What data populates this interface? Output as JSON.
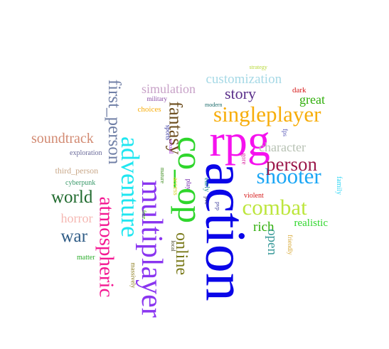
{
  "words": [
    {
      "id": "action",
      "text": "action",
      "color": "#0a05e8"
    },
    {
      "id": "rpg",
      "text": "rpg",
      "color": "#f512ee"
    },
    {
      "id": "coop",
      "text": "co_op",
      "color": "#2fd62c"
    },
    {
      "id": "multiplayer",
      "text": "multiplayer",
      "color": "#8a35f0"
    },
    {
      "id": "adventure",
      "text": "adventure",
      "color": "#1fe6f0"
    },
    {
      "id": "singleplayer",
      "text": "singleplayer",
      "color": "#f7ad0a"
    },
    {
      "id": "shooter",
      "text": "shooter",
      "color": "#1aa6f5"
    },
    {
      "id": "atmospheric",
      "text": "atmospheric",
      "color": "#f41892"
    },
    {
      "id": "combat",
      "text": "combat",
      "color": "#bde63d"
    },
    {
      "id": "fantasy",
      "text": "fantasy",
      "color": "#6b4c1c"
    },
    {
      "id": "first_person",
      "text": "first_person",
      "color": "#707fa6"
    },
    {
      "id": "person",
      "text": "person",
      "color": "#9c1a4c"
    },
    {
      "id": "world",
      "text": "world",
      "color": "#216b2f"
    },
    {
      "id": "war",
      "text": "war",
      "color": "#2f5c86"
    },
    {
      "id": "online",
      "text": "online",
      "color": "#7a7a1a"
    },
    {
      "id": "story",
      "text": "story",
      "color": "#5a2f8a"
    },
    {
      "id": "soundtrack",
      "text": "soundtrack",
      "color": "#d28a72"
    },
    {
      "id": "customization",
      "text": "customization",
      "color": "#a6d9e6"
    },
    {
      "id": "character",
      "text": "character",
      "color": "#b8c2b4"
    },
    {
      "id": "simulation",
      "text": "simulation",
      "color": "#c8a2c8"
    },
    {
      "id": "rich",
      "text": "rich",
      "color": "#2fae0a"
    },
    {
      "id": "horror",
      "text": "horror",
      "color": "#f5b7b2"
    },
    {
      "id": "open",
      "text": "open",
      "color": "#3a9a9a"
    },
    {
      "id": "great",
      "text": "great",
      "color": "#2fae0a"
    },
    {
      "id": "realistic",
      "text": "realistic",
      "color": "#2fd62c"
    },
    {
      "id": "third_person",
      "text": "third_person",
      "color": "#c9a889"
    },
    {
      "id": "exploration",
      "text": "exploration",
      "color": "#6a6a9a"
    },
    {
      "id": "cyberpunk",
      "text": "cyberpunk",
      "color": "#3a9a6a"
    },
    {
      "id": "matter",
      "text": "matter",
      "color": "#2fae2f"
    },
    {
      "id": "massively",
      "text": "massively",
      "color": "#8a7a1a"
    },
    {
      "id": "dark",
      "text": "dark",
      "color": "#d61a1a"
    },
    {
      "id": "strategy",
      "text": "strategy",
      "color": "#b8d93a"
    },
    {
      "id": "military",
      "text": "military",
      "color": "#8a4ca6"
    },
    {
      "id": "choices",
      "text": "choices",
      "color": "#f7ad0a"
    },
    {
      "id": "sports",
      "text": "sports",
      "color": "#2a2a9a"
    },
    {
      "id": "sexual",
      "text": "sexual",
      "color": "#a32fd6"
    },
    {
      "id": "fps",
      "text": "fps",
      "color": "#5a5ab8"
    },
    {
      "id": "gore",
      "text": "gore",
      "color": "#d61a9a"
    },
    {
      "id": "violent",
      "text": "violent",
      "color": "#d61a1a"
    },
    {
      "id": "family",
      "text": "family",
      "color": "#2fd6f5"
    },
    {
      "id": "friendly",
      "text": "friendly",
      "color": "#d6a62f"
    },
    {
      "id": "modern",
      "text": "modern",
      "color": "#1a6a6a"
    },
    {
      "id": "mature",
      "text": "mature",
      "color": "#3a8a1a"
    },
    {
      "id": "access",
      "text": "access",
      "color": "#d6d62f"
    },
    {
      "id": "early",
      "text": "early",
      "color": "#1a8a8a"
    },
    {
      "id": "play",
      "text": "play",
      "color": "#6a1aa6"
    },
    {
      "id": "pve",
      "text": "pve",
      "color": "#3a3a6a"
    },
    {
      "id": "pvp",
      "text": "pvp",
      "color": "#3a3a9a"
    },
    {
      "id": "free",
      "text": "free",
      "color": "#2fae0a"
    },
    {
      "id": "local",
      "text": "local",
      "color": "#4a4a2a"
    }
  ]
}
